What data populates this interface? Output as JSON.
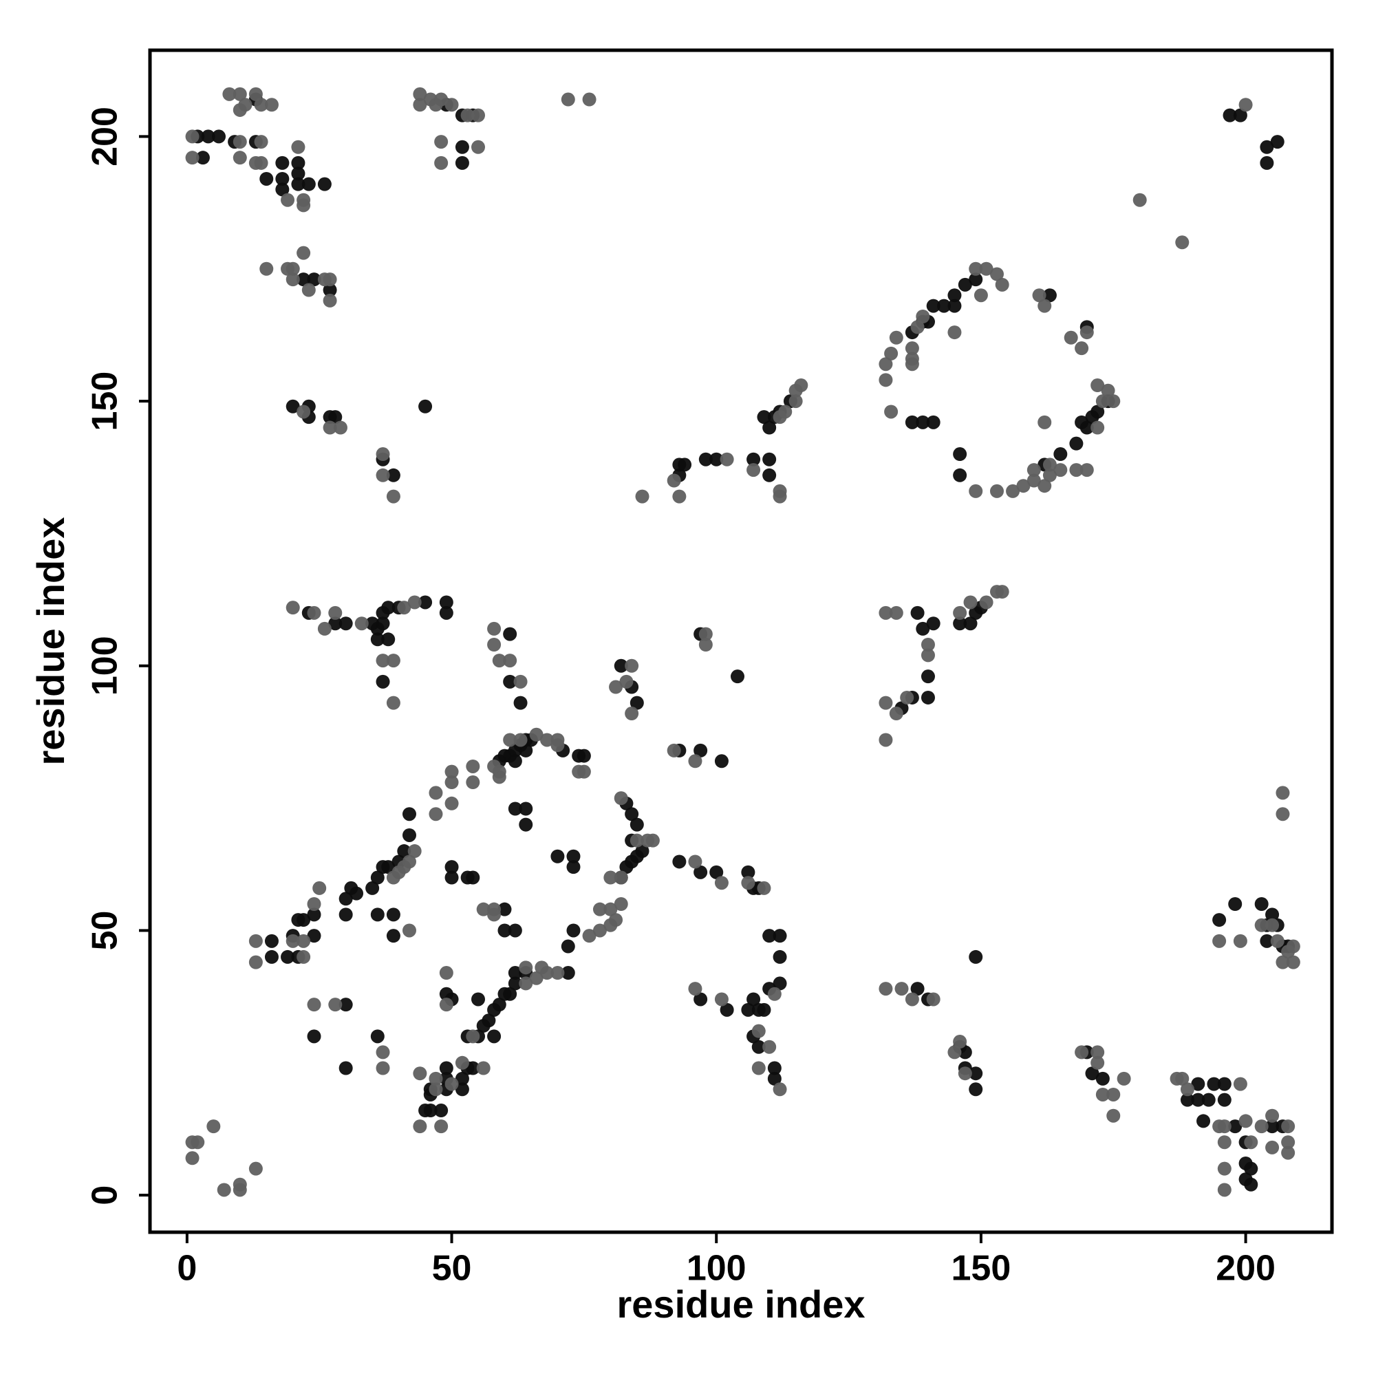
{
  "chart_data": {
    "type": "scatter",
    "xlabel": "residue index",
    "ylabel": "residue index",
    "xlim": [
      -7,
      216.3
    ],
    "ylim": [
      -7,
      216.3
    ],
    "xticks": [
      0,
      50,
      100,
      150,
      200
    ],
    "yticks": [
      0,
      50,
      100,
      150,
      200
    ],
    "grid": false,
    "series": [
      {
        "color": "#0d0d0d",
        "x": [
          2,
          4,
          6,
          3,
          9,
          13,
          13,
          18,
          21,
          21,
          18,
          18,
          21,
          23,
          15,
          26,
          24,
          22,
          27
        ],
        "values": [
          200,
          200,
          200,
          196,
          199,
          199,
          207,
          195,
          195,
          193,
          192,
          190,
          191,
          191,
          192,
          191,
          173,
          173,
          171
        ]
      },
      {
        "color": "#0d0d0d",
        "x": [
          49,
          52,
          54,
          52,
          52
        ],
        "values": [
          206,
          204,
          204,
          198,
          195
        ]
      },
      {
        "color": "#0d0d0d",
        "x": [
          20,
          23,
          23,
          27,
          28,
          45,
          37,
          39
        ],
        "values": [
          149,
          149,
          147,
          147,
          147,
          149,
          139,
          136
        ]
      },
      {
        "color": "#0d0d0d",
        "x": [
          23,
          28,
          30,
          35,
          36,
          37,
          37,
          38,
          40,
          45,
          49,
          49,
          37,
          61,
          61,
          63,
          36,
          38
        ],
        "values": [
          110,
          108,
          108,
          108,
          107,
          108,
          110,
          111,
          111,
          112,
          112,
          110,
          97,
          106,
          97,
          93,
          105,
          105
        ]
      },
      {
        "color": "#0d0d0d",
        "x": [
          82,
          84,
          85,
          97,
          104
        ],
        "values": [
          100,
          96,
          93,
          106,
          98
        ]
      },
      {
        "color": "#0d0d0d",
        "x": [
          107,
          110,
          110,
          110,
          111,
          109,
          112,
          114,
          93,
          98,
          100,
          93,
          94
        ],
        "values": [
          139,
          139,
          136,
          145,
          147,
          147,
          148,
          150,
          138,
          139,
          139,
          136,
          138
        ]
      },
      {
        "color": "#0d0d0d",
        "x": [
          137,
          139,
          141,
          146,
          146,
          137,
          139,
          141,
          143,
          145,
          147,
          149,
          145,
          140,
          163,
          162,
          165,
          168,
          170,
          171,
          172,
          169,
          174,
          170
        ],
        "values": [
          146,
          146,
          146,
          140,
          136,
          163,
          165,
          168,
          168,
          170,
          172,
          173,
          168,
          165,
          170,
          138,
          140,
          142,
          145,
          147,
          148,
          146,
          150,
          164
        ]
      },
      {
        "color": "#0d0d0d",
        "x": [
          138,
          139,
          141,
          140,
          140,
          137,
          135,
          146,
          148,
          149,
          150
        ],
        "values": [
          110,
          107,
          108,
          98,
          94,
          94,
          92,
          108,
          108,
          110,
          111
        ]
      },
      {
        "color": "#0d0d0d",
        "x": [
          16,
          16,
          19,
          21,
          20,
          21,
          22,
          24,
          24,
          30,
          30,
          31,
          32,
          35,
          36,
          37,
          38,
          40,
          41,
          42,
          42,
          36,
          39,
          39,
          50,
          50,
          53,
          54
        ],
        "values": [
          48,
          45,
          45,
          45,
          49,
          52,
          52,
          49,
          53,
          53,
          56,
          58,
          57,
          58,
          60,
          62,
          62,
          63,
          65,
          68,
          72,
          53,
          53,
          49,
          62,
          60,
          60,
          60
        ]
      },
      {
        "color": "#0d0d0d",
        "x": [
          59,
          60,
          61,
          62,
          63,
          64,
          65,
          64,
          62,
          70,
          73,
          73,
          71,
          74,
          75,
          62,
          64,
          64,
          60,
          60,
          62
        ],
        "values": [
          82,
          83,
          83,
          84,
          85,
          86,
          86,
          84,
          82,
          64,
          62,
          64,
          84,
          83,
          83,
          73,
          73,
          70,
          54,
          50,
          50
        ]
      },
      {
        "color": "#0d0d0d",
        "x": [
          82,
          83,
          84,
          85,
          86,
          83,
          84,
          85,
          84,
          93,
          97,
          100,
          106,
          107,
          108
        ],
        "values": [
          60,
          62,
          63,
          64,
          65,
          74,
          72,
          70,
          67,
          63,
          61,
          61,
          61,
          58,
          58
        ]
      },
      {
        "color": "#0d0d0d",
        "x": [
          93,
          97,
          101,
          110,
          112,
          112,
          112,
          110,
          107,
          108,
          106,
          109,
          107,
          108,
          111,
          111,
          97,
          102
        ],
        "values": [
          84,
          84,
          82,
          49,
          49,
          45,
          40,
          39,
          37,
          35,
          35,
          35,
          30,
          28,
          24,
          22,
          37,
          35
        ]
      },
      {
        "color": "#0d0d0d",
        "x": [
          45,
          46,
          48,
          46,
          46,
          49,
          49,
          49,
          52,
          52,
          53,
          54,
          53,
          56,
          57,
          58,
          59,
          60,
          61,
          62,
          62,
          64,
          58,
          55,
          55,
          50,
          49,
          72,
          72,
          73
        ],
        "values": [
          16,
          16,
          16,
          19,
          20,
          20,
          22,
          24,
          20,
          22,
          24,
          24,
          30,
          32,
          33,
          35,
          36,
          38,
          38,
          40,
          42,
          42,
          30,
          30,
          37,
          37,
          38,
          42,
          47,
          50
        ]
      },
      {
        "color": "#0d0d0d",
        "x": [
          24,
          30,
          30,
          36,
          138,
          140,
          146,
          147,
          147,
          149,
          149,
          149
        ],
        "values": [
          30,
          36,
          24,
          30,
          39,
          37,
          28,
          27,
          24,
          23,
          20,
          45
        ]
      },
      {
        "color": "#0d0d0d",
        "x": [
          170,
          171,
          173,
          189,
          191,
          191,
          193,
          194,
          196,
          196,
          192,
          198,
          200,
          200,
          201,
          200,
          201
        ],
        "values": [
          27,
          23,
          22,
          18,
          21,
          18,
          18,
          21,
          21,
          18,
          14,
          13,
          10,
          6,
          5,
          3,
          2
        ]
      },
      {
        "color": "#0d0d0d",
        "x": [
          195,
          198,
          203,
          205,
          204,
          204,
          206,
          207,
          208,
          205,
          207,
          197,
          199,
          204,
          204,
          206
        ],
        "values": [
          52,
          55,
          55,
          53,
          51,
          48,
          51,
          47,
          47,
          13,
          13,
          204,
          204,
          198,
          195,
          199
        ]
      },
      {
        "color": "#5f5f5f",
        "x": [
          1,
          1,
          10,
          10,
          8,
          10,
          10,
          11,
          13,
          14,
          16,
          13,
          14,
          14,
          21,
          22,
          22,
          19,
          15,
          19,
          20,
          20,
          22,
          23,
          26,
          27,
          27
        ],
        "values": [
          200,
          196,
          199,
          196,
          208,
          208,
          205,
          206,
          208,
          206,
          206,
          195,
          195,
          199,
          198,
          188,
          187,
          188,
          175,
          175,
          175,
          173,
          178,
          171,
          173,
          169,
          173
        ]
      },
      {
        "color": "#5f5f5f",
        "x": [
          44,
          44,
          46,
          47,
          48,
          50,
          53,
          48,
          48,
          55,
          55,
          72,
          76
        ],
        "values": [
          208,
          206,
          207,
          206,
          207,
          206,
          204,
          199,
          195,
          204,
          198,
          207,
          207
        ]
      },
      {
        "color": "#5f5f5f",
        "x": [
          22,
          27,
          29,
          37,
          37,
          39
        ],
        "values": [
          148,
          145,
          145,
          140,
          136,
          132
        ]
      },
      {
        "color": "#5f5f5f",
        "x": [
          20,
          24,
          26,
          28,
          33,
          41,
          43,
          37,
          39,
          39,
          58,
          58,
          59,
          61,
          63,
          81,
          83,
          84,
          84,
          98,
          98
        ],
        "values": [
          111,
          110,
          107,
          110,
          108,
          111,
          112,
          101,
          101,
          93,
          107,
          104,
          101,
          101,
          97,
          96,
          97,
          91,
          100,
          106,
          104
        ]
      },
      {
        "color": "#5f5f5f",
        "x": [
          42,
          49,
          49,
          44,
          44,
          48,
          47,
          47,
          50,
          52,
          56,
          54
        ],
        "values": [
          50,
          42,
          36,
          23,
          13,
          13,
          20,
          22,
          21,
          25,
          24,
          30
        ]
      },
      {
        "color": "#5f5f5f",
        "x": [
          20,
          22,
          25,
          24,
          24,
          28,
          22,
          13,
          13,
          1,
          2,
          1,
          5,
          7,
          10,
          10,
          13,
          37,
          37
        ],
        "values": [
          48,
          48,
          58,
          55,
          36,
          36,
          45,
          48,
          44,
          10,
          10,
          7,
          13,
          1,
          2,
          1,
          5,
          27,
          24
        ]
      },
      {
        "color": "#5f5f5f",
        "x": [
          43,
          42,
          41,
          39,
          40,
          47,
          47,
          50,
          50,
          50,
          54,
          54,
          59,
          59,
          58,
          61,
          63,
          66,
          68,
          70,
          70,
          74,
          75
        ],
        "values": [
          65,
          63,
          62,
          60,
          61,
          72,
          76,
          74,
          80,
          78,
          81,
          78,
          79,
          80,
          81,
          86,
          86,
          87,
          86,
          86,
          85,
          80,
          80
        ]
      },
      {
        "color": "#5f5f5f",
        "x": [
          56,
          58,
          58,
          64,
          66,
          68,
          70,
          64,
          67,
          76,
          78,
          80,
          78,
          80,
          81,
          82,
          80,
          82,
          87,
          88,
          82,
          85
        ],
        "values": [
          54,
          53,
          54,
          40,
          41,
          42,
          42,
          43,
          43,
          49,
          50,
          51,
          54,
          54,
          52,
          55,
          60,
          60,
          67,
          67,
          75,
          67
        ]
      },
      {
        "color": "#5f5f5f",
        "x": [
          86,
          93,
          92,
          102,
          107,
          112,
          112,
          112,
          113,
          115,
          116,
          115
        ],
        "values": [
          132,
          132,
          135,
          139,
          137,
          133,
          132,
          147,
          148,
          152,
          153,
          150
        ]
      },
      {
        "color": "#5f5f5f",
        "x": [
          92,
          96,
          96,
          101,
          106,
          109,
          96,
          101,
          108,
          110,
          112,
          108,
          111
        ],
        "values": [
          84,
          82,
          63,
          59,
          59,
          58,
          39,
          37,
          31,
          28,
          20,
          24,
          38
        ]
      },
      {
        "color": "#5f5f5f",
        "x": [
          132,
          134,
          132,
          132,
          134,
          136,
          140,
          140,
          146,
          148,
          151,
          153,
          154,
          132,
          135,
          137,
          141,
          145,
          146,
          147
        ],
        "values": [
          93,
          91,
          86,
          110,
          110,
          94,
          102,
          104,
          110,
          112,
          112,
          114,
          114,
          39,
          39,
          37,
          37,
          27,
          29,
          23
        ]
      },
      {
        "color": "#5f5f5f",
        "x": [
          133,
          132,
          132,
          133,
          134,
          137,
          137,
          137,
          138,
          139,
          145,
          149,
          151,
          153,
          154,
          150,
          149,
          153,
          156,
          158,
          160,
          162,
          163,
          160,
          165,
          167,
          169,
          170,
          168,
          170,
          172,
          173,
          174,
          175,
          172,
          163,
          162,
          161,
          162
        ],
        "values": [
          148,
          154,
          157,
          159,
          162,
          158,
          160,
          157,
          164,
          166,
          163,
          175,
          175,
          174,
          172,
          170,
          133,
          133,
          133,
          134,
          135,
          134,
          136,
          137,
          137,
          162,
          160,
          163,
          137,
          137,
          153,
          150,
          152,
          150,
          145,
          138,
          146,
          170,
          168
        ]
      },
      {
        "color": "#5f5f5f",
        "x": [
          169,
          172,
          172,
          173,
          175,
          175,
          177,
          187,
          188,
          189,
          195,
          196,
          196,
          196,
          196,
          199,
          200,
          201,
          203,
          205,
          205,
          208,
          208,
          208
        ],
        "values": [
          27,
          27,
          25,
          19,
          19,
          15,
          22,
          22,
          22,
          20,
          13,
          13,
          10,
          5,
          1,
          21,
          14,
          10,
          13,
          9,
          15,
          13,
          10,
          8
        ]
      },
      {
        "color": "#5f5f5f",
        "x": [
          195,
          199,
          203,
          205,
          206,
          207,
          208,
          209,
          209,
          207,
          207,
          180,
          188,
          200
        ],
        "values": [
          48,
          48,
          51,
          51,
          48,
          44,
          46,
          44,
          47,
          76,
          72,
          188,
          180,
          206
        ]
      }
    ]
  }
}
